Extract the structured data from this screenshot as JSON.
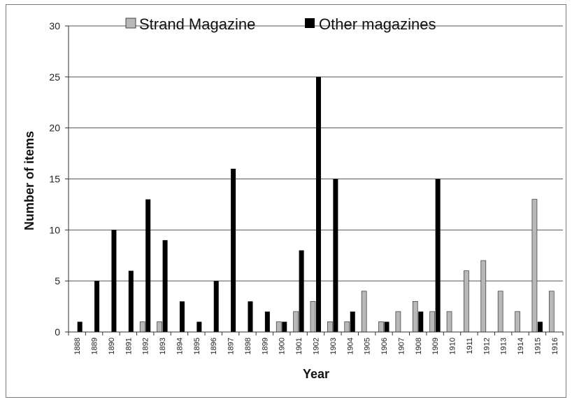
{
  "chart_data": {
    "type": "bar",
    "title": "",
    "xlabel": "Year",
    "ylabel": "Number of items",
    "ylim": [
      0,
      30
    ],
    "yticks": [
      0,
      5,
      10,
      15,
      20,
      25,
      30
    ],
    "grid": true,
    "legend_position": "top",
    "categories": [
      "1888",
      "1889",
      "1890",
      "1891",
      "1892",
      "1893",
      "1894",
      "1895",
      "1896",
      "1897",
      "1898",
      "1899",
      "1900",
      "1901",
      "1902",
      "1903",
      "1904",
      "1905",
      "1906",
      "1907",
      "1908",
      "1909",
      "1910",
      "1911",
      "1912",
      "1913",
      "1914",
      "1915",
      "1916"
    ],
    "series": [
      {
        "name": "Strand Magazine",
        "color": "#b8b8b8",
        "values": [
          0,
          0,
          0,
          0,
          1,
          1,
          0,
          0,
          0,
          0,
          0,
          0,
          1,
          2,
          3,
          1,
          1,
          4,
          1,
          2,
          3,
          2,
          2,
          6,
          7,
          4,
          2,
          13,
          4
        ]
      },
      {
        "name": "Other magazines",
        "color": "#000000",
        "values": [
          1,
          5,
          10,
          6,
          13,
          9,
          3,
          1,
          5,
          16,
          3,
          2,
          1,
          8,
          25,
          15,
          2,
          0,
          1,
          0,
          2,
          15,
          0,
          0,
          0,
          0,
          0,
          1,
          0
        ]
      }
    ]
  }
}
